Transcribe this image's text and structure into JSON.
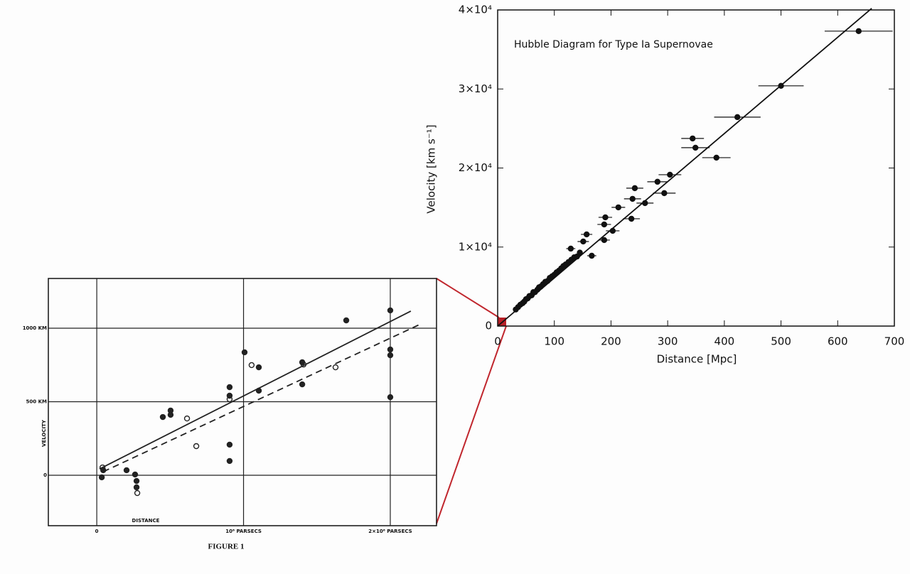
{
  "chart_data": [
    {
      "type": "scatter",
      "caption": "FIGURE 1",
      "xlabel": "DISTANCE",
      "ylabel": "VELOCITY",
      "xlim": [
        -330000,
        2315000
      ],
      "ylim": [
        -343,
        1338
      ],
      "xticks": [
        0,
        {
          "value": 1000000,
          "label": "10⁶ PARSECS"
        },
        {
          "value": 2000000,
          "label": "2×10⁶ PARSECS"
        }
      ],
      "yticks": [
        0,
        {
          "value": 500,
          "label": "500 KM"
        },
        {
          "value": 1000,
          "label": "1000 KM"
        }
      ],
      "grid": true,
      "color": "#222",
      "series": [
        {
          "marker": "filled",
          "x": [
            34000,
            44000,
            203000,
            261000,
            271000,
            271000,
            450000,
            503000,
            503000,
            905000,
            905000,
            905000,
            905000,
            1007000,
            1104000,
            1104000,
            1400000,
            1400000,
            1700000,
            2000000,
            2000000,
            2000000,
            2000000
          ],
          "values": [
            -14,
            34,
            34,
            5,
            -39,
            -82,
            396,
            440,
            411,
            599,
            541,
            208,
            97,
            836,
            575,
            734,
            768,
            618,
            1053,
            1121,
            855,
            816,
            531
          ]
        },
        {
          "marker": "open",
          "x": [
            39000,
            276000,
            615000,
            678000,
            905000,
            1055000,
            1627000,
            1409000
          ],
          "values": [
            53,
            -121,
            386,
            198,
            517,
            749,
            734,
            753
          ]
        }
      ],
      "lines": [
        {
          "style": "solid",
          "x": [
            19000,
            2140000
          ],
          "values": [
            43,
            1116
          ]
        },
        {
          "style": "dashed",
          "x": [
            44000,
            2198000
          ],
          "values": [
            24,
            1024
          ]
        }
      ]
    },
    {
      "type": "scatter",
      "title": "Hubble Diagram for Type Ia Supernovae",
      "xlabel": "Distance [Mpc]",
      "ylabel": "Velocity [km s⁻¹]",
      "xlim": [
        0,
        700
      ],
      "ylim": [
        0,
        40000
      ],
      "xticks": [
        0,
        100,
        200,
        300,
        400,
        500,
        600,
        700
      ],
      "yticks": [
        0,
        {
          "value": 10000,
          "label": "1×10⁴"
        },
        {
          "value": 20000,
          "label": "2×10⁴"
        },
        {
          "value": 30000,
          "label": "3×10⁴"
        },
        {
          "value": 40000,
          "label": "4×10⁴"
        }
      ],
      "grid": false,
      "color": "#111",
      "series": [
        {
          "marker": "filled",
          "x": [
            637,
            500,
            423,
            344,
            349,
            386,
            304,
            282,
            242,
            294,
            238,
            260,
            213,
            236,
            190,
            188,
            203,
            157,
            188,
            151,
            129,
            166
          ],
          "values": [
            37320,
            30400,
            26440,
            23740,
            22570,
            21310,
            19150,
            18260,
            17450,
            16820,
            16100,
            15560,
            15020,
            13580,
            13760,
            12860,
            12050,
            11600,
            10880,
            10700,
            9800,
            8900
          ],
          "xerr": [
            60,
            40,
            41,
            20,
            25,
            25,
            20,
            18,
            15,
            20,
            15,
            15,
            12,
            15,
            12,
            12,
            12,
            10,
            10,
            10,
            8,
            8
          ]
        },
        {
          "marker": "filled",
          "x": [
            32,
            36,
            40,
            44,
            47,
            50,
            53,
            56,
            60,
            63,
            66,
            70,
            73,
            76,
            80,
            84,
            88,
            92,
            96,
            100,
            104,
            108,
            112,
            116,
            120,
            125,
            130,
            135,
            140,
            145
          ],
          "values": [
            2100,
            2400,
            2700,
            2900,
            3100,
            3400,
            3500,
            3800,
            3900,
            4300,
            4300,
            4600,
            4900,
            5000,
            5300,
            5600,
            5700,
            6100,
            6300,
            6500,
            6800,
            7000,
            7300,
            7600,
            7800,
            8100,
            8400,
            8700,
            8800,
            9300
          ]
        }
      ],
      "lines": [
        {
          "style": "solid",
          "x": [
            0,
            660
          ],
          "values": [
            0,
            40200
          ]
        }
      ]
    }
  ]
}
